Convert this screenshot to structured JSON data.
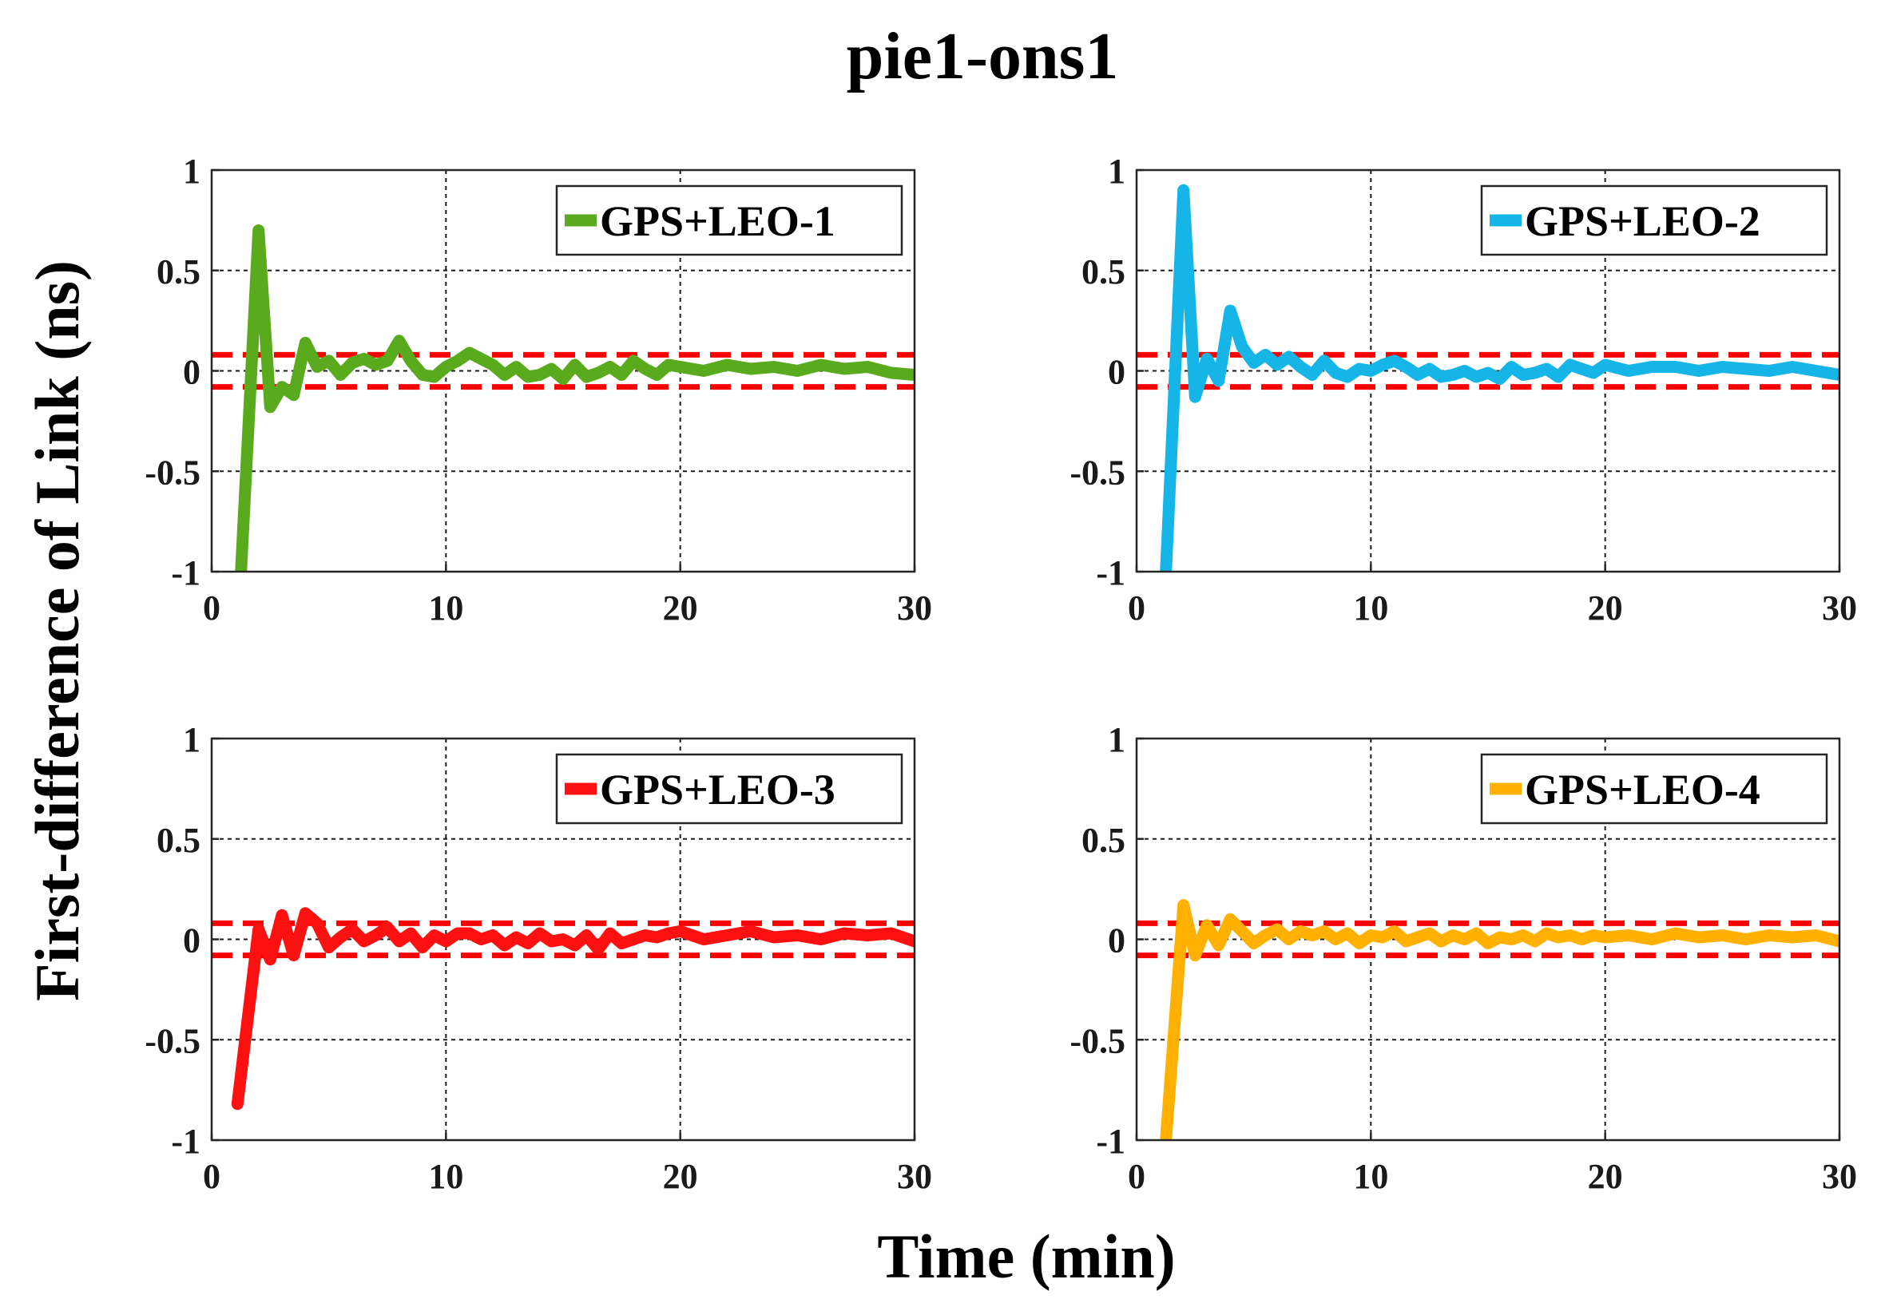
{
  "figure": {
    "title": "pie1-ons1",
    "xlabel": "Time (min)",
    "ylabel": "First-difference of Link (ns)"
  },
  "threshold_color": "#ff0000",
  "chart_data": [
    {
      "type": "line",
      "legend": "GPS+LEO-1",
      "color": "#5aaa1e",
      "xlim": [
        0,
        30
      ],
      "ylim": [
        -1,
        1
      ],
      "xticks": [
        0,
        10,
        20,
        30
      ],
      "yticks": [
        1,
        0.5,
        0,
        -0.5,
        -1
      ],
      "xtick_labels": [
        "0",
        "10",
        "20",
        "30"
      ],
      "ytick_labels": [
        "1",
        "0.5",
        "0",
        "-0.5",
        "-1"
      ],
      "grid": true,
      "thresholds": [
        0.08,
        -0.08
      ],
      "x": [
        1.25,
        2.0,
        2.5,
        3.0,
        3.5,
        4.0,
        4.5,
        5.0,
        5.5,
        6.0,
        6.5,
        7.0,
        7.5,
        8.0,
        8.5,
        9.0,
        9.5,
        10.0,
        10.5,
        11.0,
        11.5,
        12.0,
        12.5,
        13.0,
        13.5,
        14.0,
        14.5,
        15.0,
        15.5,
        16.0,
        16.5,
        17.0,
        17.5,
        18.0,
        18.5,
        19.0,
        19.5,
        20.0,
        21.0,
        22.0,
        23.0,
        24.0,
        25.0,
        26.0,
        27.0,
        28.0,
        29.0,
        30.0
      ],
      "y": [
        -1.0,
        0.7,
        -0.18,
        -0.08,
        -0.12,
        0.14,
        0.02,
        0.05,
        -0.02,
        0.04,
        0.06,
        0.03,
        0.05,
        0.15,
        0.05,
        -0.02,
        -0.03,
        0.02,
        0.05,
        0.09,
        0.06,
        0.03,
        -0.02,
        0.02,
        -0.03,
        -0.02,
        0.01,
        -0.04,
        0.03,
        -0.03,
        -0.01,
        0.02,
        -0.02,
        0.05,
        0.01,
        -0.02,
        0.03,
        0.02,
        0.0,
        0.03,
        0.01,
        0.02,
        0.0,
        0.03,
        0.01,
        0.02,
        -0.01,
        -0.02
      ]
    },
    {
      "type": "line",
      "legend": "GPS+LEO-2",
      "color": "#16b5e8",
      "xlim": [
        0,
        30
      ],
      "ylim": [
        -1,
        1
      ],
      "xticks": [
        0,
        10,
        20,
        30
      ],
      "yticks": [
        1,
        0.5,
        0,
        -0.5,
        -1
      ],
      "xtick_labels": [
        "0",
        "10",
        "20",
        "30"
      ],
      "ytick_labels": [
        "1",
        "0.5",
        "0",
        "-0.5",
        "-1"
      ],
      "grid": true,
      "thresholds": [
        0.08,
        -0.08
      ],
      "x": [
        1.25,
        2.0,
        2.5,
        3.0,
        3.5,
        4.0,
        4.5,
        5.0,
        5.5,
        6.0,
        6.5,
        7.0,
        7.5,
        8.0,
        8.5,
        9.0,
        9.5,
        10.0,
        10.5,
        11.0,
        11.5,
        12.0,
        12.5,
        13.0,
        13.5,
        14.0,
        14.5,
        15.0,
        15.5,
        16.0,
        16.5,
        17.0,
        17.5,
        18.0,
        18.5,
        19.0,
        19.5,
        20.0,
        21.0,
        22.0,
        23.0,
        24.0,
        25.0,
        26.0,
        27.0,
        28.0,
        29.0,
        30.0
      ],
      "y": [
        -1.0,
        0.9,
        -0.13,
        0.06,
        -0.05,
        0.3,
        0.12,
        0.04,
        0.08,
        0.03,
        0.07,
        0.02,
        -0.02,
        0.05,
        -0.01,
        -0.03,
        0.01,
        0.0,
        0.03,
        0.05,
        0.02,
        -0.02,
        0.01,
        -0.03,
        -0.02,
        0.0,
        -0.03,
        -0.01,
        -0.04,
        0.02,
        -0.02,
        -0.01,
        0.01,
        -0.03,
        0.03,
        0.01,
        -0.01,
        0.03,
        0.0,
        0.02,
        0.02,
        0.0,
        0.02,
        0.01,
        0.0,
        0.02,
        0.0,
        -0.02
      ]
    },
    {
      "type": "line",
      "legend": "GPS+LEO-3",
      "color": "#ff1010",
      "xlim": [
        0,
        30
      ],
      "ylim": [
        -1,
        1
      ],
      "xticks": [
        0,
        10,
        20,
        30
      ],
      "yticks": [
        1,
        0.5,
        0,
        -0.5,
        -1
      ],
      "xtick_labels": [
        "0",
        "10",
        "20",
        "30"
      ],
      "ytick_labels": [
        "1",
        "0.5",
        "0",
        "-0.5",
        "-1"
      ],
      "grid": true,
      "thresholds": [
        0.08,
        -0.08
      ],
      "x": [
        1.1,
        2.0,
        2.5,
        3.0,
        3.5,
        4.0,
        4.5,
        5.0,
        5.5,
        6.0,
        6.5,
        7.0,
        7.5,
        8.0,
        8.5,
        9.0,
        9.5,
        10.0,
        10.5,
        11.0,
        11.5,
        12.0,
        12.5,
        13.0,
        13.5,
        14.0,
        14.5,
        15.0,
        15.5,
        16.0,
        16.5,
        17.0,
        17.5,
        18.0,
        18.5,
        19.0,
        19.5,
        20.0,
        21.0,
        22.0,
        23.0,
        24.0,
        25.0,
        26.0,
        27.0,
        28.0,
        29.0,
        30.0
      ],
      "y": [
        -0.82,
        0.05,
        -0.1,
        0.12,
        -0.08,
        0.13,
        0.08,
        -0.04,
        0.01,
        0.05,
        -0.01,
        0.02,
        0.06,
        -0.01,
        0.03,
        -0.04,
        0.02,
        -0.01,
        0.03,
        0.03,
        0.0,
        0.02,
        -0.03,
        0.01,
        -0.02,
        0.03,
        -0.01,
        0.0,
        -0.03,
        0.02,
        -0.05,
        0.03,
        -0.02,
        0.0,
        0.02,
        0.01,
        0.03,
        0.04,
        0.0,
        0.02,
        0.04,
        0.01,
        0.02,
        0.0,
        0.03,
        0.02,
        0.03,
        -0.01
      ]
    },
    {
      "type": "line",
      "legend": "GPS+LEO-4",
      "color": "#ffb000",
      "xlim": [
        0,
        30
      ],
      "ylim": [
        -1,
        1
      ],
      "xticks": [
        0,
        10,
        20,
        30
      ],
      "yticks": [
        1,
        0.5,
        0,
        -0.5,
        -1
      ],
      "xtick_labels": [
        "0",
        "10",
        "20",
        "30"
      ],
      "ytick_labels": [
        "1",
        "0.5",
        "0",
        "-0.5",
        "-1"
      ],
      "grid": true,
      "thresholds": [
        0.08,
        -0.08
      ],
      "x": [
        1.25,
        2.0,
        2.5,
        3.0,
        3.5,
        4.0,
        4.5,
        5.0,
        5.5,
        6.0,
        6.5,
        7.0,
        7.5,
        8.0,
        8.5,
        9.0,
        9.5,
        10.0,
        10.5,
        11.0,
        11.5,
        12.0,
        12.5,
        13.0,
        13.5,
        14.0,
        14.5,
        15.0,
        15.5,
        16.0,
        16.5,
        17.0,
        17.5,
        18.0,
        18.5,
        19.0,
        19.5,
        20.0,
        21.0,
        22.0,
        23.0,
        24.0,
        25.0,
        26.0,
        27.0,
        28.0,
        29.0,
        30.0
      ],
      "y": [
        -1.0,
        0.17,
        -0.08,
        0.07,
        -0.03,
        0.1,
        0.04,
        -0.02,
        0.02,
        0.05,
        0.0,
        0.04,
        0.02,
        0.04,
        0.0,
        0.03,
        -0.02,
        0.02,
        0.01,
        0.04,
        -0.01,
        0.01,
        0.03,
        -0.01,
        0.02,
        0.0,
        0.03,
        -0.02,
        0.01,
        0.0,
        0.02,
        -0.01,
        0.03,
        0.01,
        0.02,
        0.0,
        0.02,
        0.01,
        0.02,
        0.0,
        0.03,
        0.01,
        0.02,
        0.0,
        0.02,
        0.01,
        0.02,
        -0.01
      ]
    }
  ]
}
